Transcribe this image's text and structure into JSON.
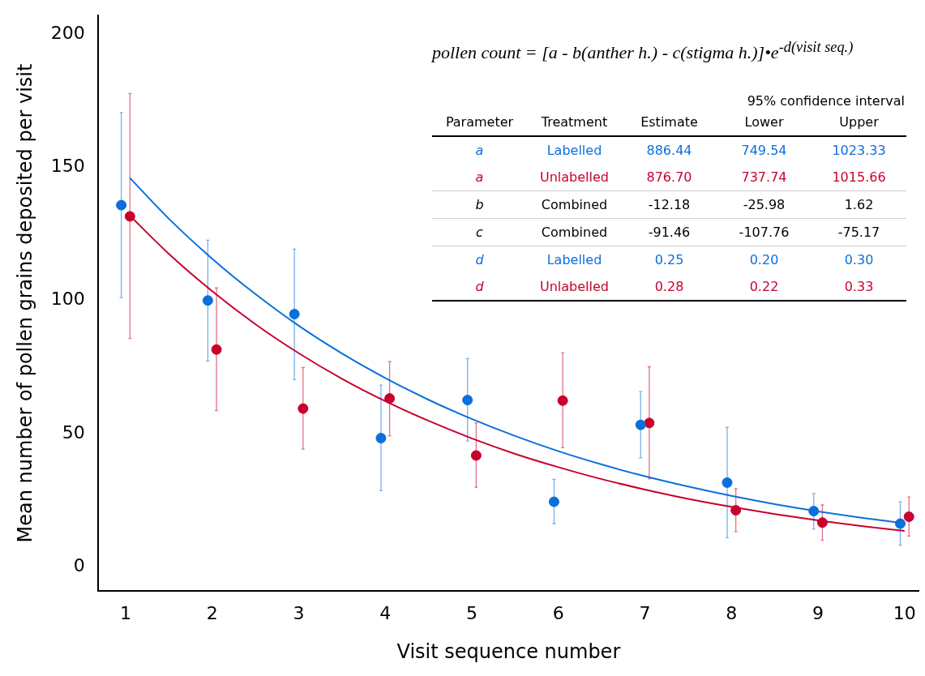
{
  "chart_data": {
    "type": "scatter",
    "xlabel": "Visit sequence number",
    "ylabel": "Mean number of pollen grains deposited per visit",
    "xlim": [
      0.68,
      10.17
    ],
    "xticks": [
      1,
      2,
      3,
      4,
      5,
      6,
      7,
      8,
      9,
      10
    ],
    "ylim": [
      -9,
      207
    ],
    "yticks": [
      0,
      50,
      100,
      150,
      200
    ],
    "grid": false,
    "legend": false,
    "marker": "circle",
    "series": [
      {
        "color": "#0a6fdc",
        "x": [
          0.95,
          1.95,
          2.95,
          3.95,
          4.95,
          5.95,
          6.95,
          7.95,
          8.95,
          9.95
        ],
        "values": [
          135.8,
          100.0,
          94.9,
          48.3,
          62.6,
          24.4,
          53.3,
          31.6,
          20.9,
          16.2
        ],
        "errors": [
          [
            101.1,
            170.6
          ],
          [
            77.3,
            122.6
          ],
          [
            70.3,
            119.3
          ],
          [
            28.6,
            68.2
          ],
          [
            47.2,
            78.2
          ],
          [
            16.2,
            32.8
          ],
          [
            40.9,
            65.8
          ],
          [
            10.9,
            52.4
          ],
          [
            14.2,
            27.5
          ],
          [
            8.1,
            24.4
          ]
        ]
      },
      {
        "color": "#c8002e",
        "x": [
          1.05,
          2.05,
          3.05,
          4.05,
          5.05,
          6.05,
          7.05,
          8.05,
          9.05,
          10.05
        ],
        "values": [
          131.6,
          81.6,
          59.4,
          63.2,
          41.8,
          62.4,
          54.0,
          21.2,
          16.6,
          18.8
        ],
        "errors": [
          [
            85.7,
            177.7
          ],
          [
            58.6,
            104.7
          ],
          [
            44.2,
            74.8
          ],
          [
            49.2,
            77.0
          ],
          [
            29.9,
            54.0
          ],
          [
            44.7,
            80.3
          ],
          [
            33.1,
            75.1
          ],
          [
            13.2,
            29.3
          ],
          [
            10.0,
            23.2
          ],
          [
            11.5,
            26.2
          ]
        ]
      },
      {
        "type": "line",
        "color": "#0a6fdc",
        "marker": "none",
        "x": [
          1.05,
          1.5,
          2,
          2.5,
          3,
          3.5,
          4,
          4.5,
          5,
          5.5,
          6,
          6.5,
          7,
          7.5,
          8,
          8.5,
          9,
          9.5,
          10
        ],
        "values": [
          146,
          130.7,
          115.7,
          102.4,
          90.5,
          80.1,
          70.9,
          62.7,
          55.5,
          49.1,
          43.4,
          38.4,
          34.0,
          30.1,
          26.6,
          23.5,
          20.8,
          18.4,
          16.3
        ]
      },
      {
        "type": "line",
        "color": "#c8002e",
        "marker": "none",
        "x": [
          1.03,
          1.5,
          2,
          2.5,
          3,
          3.5,
          4,
          4.5,
          5,
          5.5,
          6,
          6.5,
          7,
          7.5,
          8,
          8.5,
          9,
          9.5,
          10
        ],
        "values": [
          132.5,
          117.5,
          103.5,
          91.1,
          80.2,
          70.6,
          62.2,
          54.8,
          48.2,
          42.4,
          37.4,
          32.9,
          29.0,
          25.5,
          22.5,
          19.8,
          17.4,
          15.3,
          13.5
        ]
      }
    ],
    "annotations": [
      "pollen count = [a  - b(anther h.) - c(stigma h.)]•e$^{-d(visit seq.)}$",
      "95% confidence interval",
      "Parameter",
      "Treatment",
      "Estimate",
      "Lower",
      "Upper",
      "a",
      "Labelled",
      "886.44",
      "749.54",
      "1023.33",
      "a",
      "Unlabelled",
      "876.70",
      "737.74",
      "1015.66",
      "b",
      "Combined",
      "-12.18",
      "-25.98",
      "1.62",
      "c",
      "Combined",
      "-91.46",
      "-107.76",
      "-75.17",
      "d",
      "Labelled",
      "0.25",
      "0.20",
      "0.30",
      "d",
      "Unlabelled",
      "0.28",
      "0.22",
      "0.33"
    ]
  }
}
